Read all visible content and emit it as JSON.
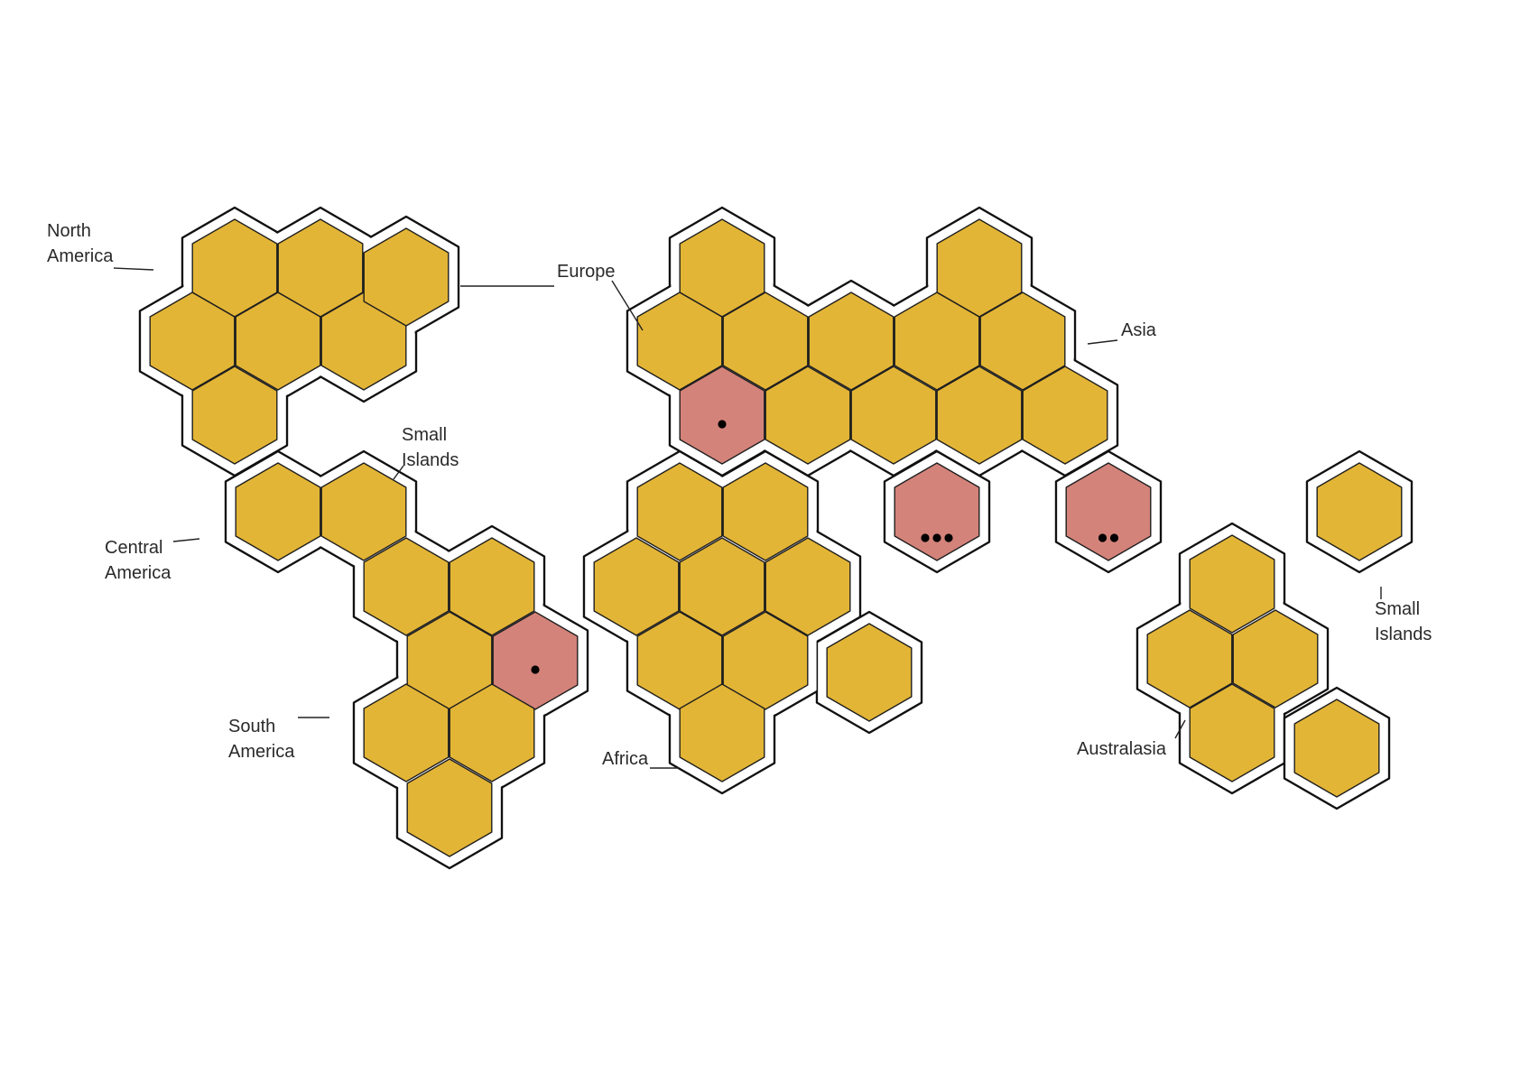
{
  "colors": {
    "land": "#e3b536",
    "highlight": "#d4837a",
    "border": "#1f1f1f",
    "coast": "#111111"
  },
  "regions": [
    {
      "key": "north_america",
      "lines": [
        "North",
        "America"
      ]
    },
    {
      "key": "europe",
      "lines": [
        "Europe"
      ]
    },
    {
      "key": "asia",
      "lines": [
        "Asia"
      ]
    },
    {
      "key": "small_islands_caribbean",
      "lines": [
        "Small",
        "Islands"
      ]
    },
    {
      "key": "central_america",
      "lines": [
        "Central",
        "America"
      ]
    },
    {
      "key": "south_america",
      "lines": [
        "South",
        "America"
      ]
    },
    {
      "key": "africa",
      "lines": [
        "Africa"
      ]
    },
    {
      "key": "australasia",
      "lines": [
        "Australasia"
      ]
    },
    {
      "key": "small_islands_pacific",
      "lines": [
        "Small",
        "Islands"
      ]
    }
  ],
  "highlighted_cells": [
    {
      "region": "South America",
      "marker_dots": 1
    },
    {
      "region": "Europe",
      "marker_dots": 1
    },
    {
      "region": "Asia",
      "marker_dots": 3
    },
    {
      "region": "Asia",
      "marker_dots": 2
    }
  ]
}
